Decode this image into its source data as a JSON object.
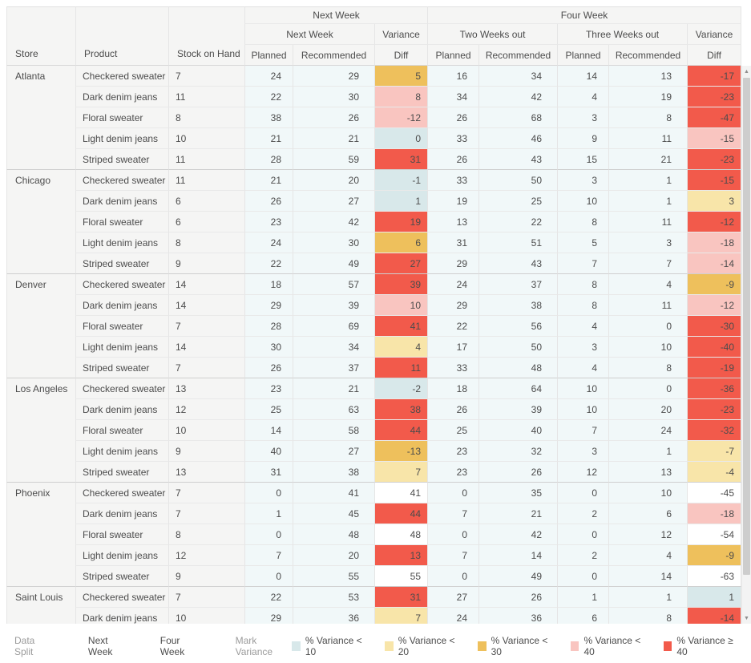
{
  "header": {
    "left_columns": [
      "Store",
      "Product",
      "Stock on Hand"
    ],
    "top_groups": [
      {
        "label": "Next Week",
        "span": 3
      },
      {
        "label": "Four Week",
        "span": 5
      }
    ],
    "mid_groups": [
      {
        "label": "Next Week",
        "span": 2
      },
      {
        "label": "Variance",
        "span": 1
      },
      {
        "label": "Two Weeks out",
        "span": 2
      },
      {
        "label": "Three Weeks out",
        "span": 2
      },
      {
        "label": "Variance",
        "span": 1
      }
    ],
    "value_columns": [
      "Planned",
      "Recommended",
      "Diff",
      "Planned",
      "Recommended",
      "Planned",
      "Recommended",
      "Diff"
    ]
  },
  "rows": [
    {
      "store": "Atlanta",
      "store_span": 5,
      "product": "Checkered sweater",
      "stock": "7",
      "nw_planned": "24",
      "nw_recommended": "29",
      "nw_diff": "5",
      "nw_band": "lt30",
      "w2_planned": "16",
      "w2_recommended": "34",
      "w3_planned": "14",
      "w3_recommended": "13",
      "fw_diff": "-17",
      "fw_band": "gte40"
    },
    {
      "product": "Dark denim jeans",
      "stock": "11",
      "nw_planned": "22",
      "nw_recommended": "30",
      "nw_diff": "8",
      "nw_band": "lt40",
      "w2_planned": "34",
      "w2_recommended": "42",
      "w3_planned": "4",
      "w3_recommended": "19",
      "fw_diff": "-23",
      "fw_band": "gte40"
    },
    {
      "product": "Floral sweater",
      "stock": "8",
      "nw_planned": "38",
      "nw_recommended": "26",
      "nw_diff": "-12",
      "nw_band": "lt40",
      "w2_planned": "26",
      "w2_recommended": "68",
      "w3_planned": "3",
      "w3_recommended": "8",
      "fw_diff": "-47",
      "fw_band": "gte40"
    },
    {
      "product": "Light denim jeans",
      "stock": "10",
      "nw_planned": "21",
      "nw_recommended": "21",
      "nw_diff": "0",
      "nw_band": "lt10",
      "w2_planned": "33",
      "w2_recommended": "46",
      "w3_planned": "9",
      "w3_recommended": "11",
      "fw_diff": "-15",
      "fw_band": "lt40"
    },
    {
      "product": "Striped sweater",
      "stock": "11",
      "nw_planned": "28",
      "nw_recommended": "59",
      "nw_diff": "31",
      "nw_band": "gte40",
      "w2_planned": "26",
      "w2_recommended": "43",
      "w3_planned": "15",
      "w3_recommended": "21",
      "fw_diff": "-23",
      "fw_band": "gte40"
    },
    {
      "store": "Chicago",
      "store_span": 5,
      "product": "Checkered sweater",
      "stock": "11",
      "nw_planned": "21",
      "nw_recommended": "20",
      "nw_diff": "-1",
      "nw_band": "lt10",
      "w2_planned": "33",
      "w2_recommended": "50",
      "w3_planned": "3",
      "w3_recommended": "1",
      "fw_diff": "-15",
      "fw_band": "gte40"
    },
    {
      "product": "Dark denim jeans",
      "stock": "6",
      "nw_planned": "26",
      "nw_recommended": "27",
      "nw_diff": "1",
      "nw_band": "lt10",
      "w2_planned": "19",
      "w2_recommended": "25",
      "w3_planned": "10",
      "w3_recommended": "1",
      "fw_diff": "3",
      "fw_band": "lt20"
    },
    {
      "product": "Floral sweater",
      "stock": "6",
      "nw_planned": "23",
      "nw_recommended": "42",
      "nw_diff": "19",
      "nw_band": "gte40",
      "w2_planned": "13",
      "w2_recommended": "22",
      "w3_planned": "8",
      "w3_recommended": "11",
      "fw_diff": "-12",
      "fw_band": "gte40"
    },
    {
      "product": "Light denim jeans",
      "stock": "8",
      "nw_planned": "24",
      "nw_recommended": "30",
      "nw_diff": "6",
      "nw_band": "lt30",
      "w2_planned": "31",
      "w2_recommended": "51",
      "w3_planned": "5",
      "w3_recommended": "3",
      "fw_diff": "-18",
      "fw_band": "lt40"
    },
    {
      "product": "Striped sweater",
      "stock": "9",
      "nw_planned": "22",
      "nw_recommended": "49",
      "nw_diff": "27",
      "nw_band": "gte40",
      "w2_planned": "29",
      "w2_recommended": "43",
      "w3_planned": "7",
      "w3_recommended": "7",
      "fw_diff": "-14",
      "fw_band": "lt40"
    },
    {
      "store": "Denver",
      "store_span": 5,
      "product": "Checkered sweater",
      "stock": "14",
      "nw_planned": "18",
      "nw_recommended": "57",
      "nw_diff": "39",
      "nw_band": "gte40",
      "w2_planned": "24",
      "w2_recommended": "37",
      "w3_planned": "8",
      "w3_recommended": "4",
      "fw_diff": "-9",
      "fw_band": "lt30"
    },
    {
      "product": "Dark denim jeans",
      "stock": "14",
      "nw_planned": "29",
      "nw_recommended": "39",
      "nw_diff": "10",
      "nw_band": "lt40",
      "w2_planned": "29",
      "w2_recommended": "38",
      "w3_planned": "8",
      "w3_recommended": "11",
      "fw_diff": "-12",
      "fw_band": "lt40"
    },
    {
      "product": "Floral sweater",
      "stock": "7",
      "nw_planned": "28",
      "nw_recommended": "69",
      "nw_diff": "41",
      "nw_band": "gte40",
      "w2_planned": "22",
      "w2_recommended": "56",
      "w3_planned": "4",
      "w3_recommended": "0",
      "fw_diff": "-30",
      "fw_band": "gte40"
    },
    {
      "product": "Light denim jeans",
      "stock": "14",
      "nw_planned": "30",
      "nw_recommended": "34",
      "nw_diff": "4",
      "nw_band": "lt20",
      "w2_planned": "17",
      "w2_recommended": "50",
      "w3_planned": "3",
      "w3_recommended": "10",
      "fw_diff": "-40",
      "fw_band": "gte40"
    },
    {
      "product": "Striped sweater",
      "stock": "7",
      "nw_planned": "26",
      "nw_recommended": "37",
      "nw_diff": "11",
      "nw_band": "gte40",
      "w2_planned": "33",
      "w2_recommended": "48",
      "w3_planned": "4",
      "w3_recommended": "8",
      "fw_diff": "-19",
      "fw_band": "gte40"
    },
    {
      "store": "Los Angeles",
      "store_span": 5,
      "product": "Checkered sweater",
      "stock": "13",
      "nw_planned": "23",
      "nw_recommended": "21",
      "nw_diff": "-2",
      "nw_band": "lt10",
      "w2_planned": "18",
      "w2_recommended": "64",
      "w3_planned": "10",
      "w3_recommended": "0",
      "fw_diff": "-36",
      "fw_band": "gte40"
    },
    {
      "product": "Dark denim jeans",
      "stock": "12",
      "nw_planned": "25",
      "nw_recommended": "63",
      "nw_diff": "38",
      "nw_band": "gte40",
      "w2_planned": "26",
      "w2_recommended": "39",
      "w3_planned": "10",
      "w3_recommended": "20",
      "fw_diff": "-23",
      "fw_band": "gte40"
    },
    {
      "product": "Floral sweater",
      "stock": "10",
      "nw_planned": "14",
      "nw_recommended": "58",
      "nw_diff": "44",
      "nw_band": "gte40",
      "w2_planned": "25",
      "w2_recommended": "40",
      "w3_planned": "7",
      "w3_recommended": "24",
      "fw_diff": "-32",
      "fw_band": "gte40"
    },
    {
      "product": "Light denim jeans",
      "stock": "9",
      "nw_planned": "40",
      "nw_recommended": "27",
      "nw_diff": "-13",
      "nw_band": "lt30",
      "w2_planned": "23",
      "w2_recommended": "32",
      "w3_planned": "3",
      "w3_recommended": "1",
      "fw_diff": "-7",
      "fw_band": "lt20"
    },
    {
      "product": "Striped sweater",
      "stock": "13",
      "nw_planned": "31",
      "nw_recommended": "38",
      "nw_diff": "7",
      "nw_band": "lt20",
      "w2_planned": "23",
      "w2_recommended": "26",
      "w3_planned": "12",
      "w3_recommended": "13",
      "fw_diff": "-4",
      "fw_band": "lt20"
    },
    {
      "store": "Phoenix",
      "store_span": 5,
      "product": "Checkered sweater",
      "stock": "7",
      "nw_planned": "0",
      "nw_recommended": "41",
      "nw_diff": "41",
      "nw_band": "none",
      "w2_planned": "0",
      "w2_recommended": "35",
      "w3_planned": "0",
      "w3_recommended": "10",
      "fw_diff": "-45",
      "fw_band": "none"
    },
    {
      "product": "Dark denim jeans",
      "stock": "7",
      "nw_planned": "1",
      "nw_recommended": "45",
      "nw_diff": "44",
      "nw_band": "gte40",
      "w2_planned": "7",
      "w2_recommended": "21",
      "w3_planned": "2",
      "w3_recommended": "6",
      "fw_diff": "-18",
      "fw_band": "lt40"
    },
    {
      "product": "Floral sweater",
      "stock": "8",
      "nw_planned": "0",
      "nw_recommended": "48",
      "nw_diff": "48",
      "nw_band": "none",
      "w2_planned": "0",
      "w2_recommended": "42",
      "w3_planned": "0",
      "w3_recommended": "12",
      "fw_diff": "-54",
      "fw_band": "none"
    },
    {
      "product": "Light denim jeans",
      "stock": "12",
      "nw_planned": "7",
      "nw_recommended": "20",
      "nw_diff": "13",
      "nw_band": "gte40",
      "w2_planned": "7",
      "w2_recommended": "14",
      "w3_planned": "2",
      "w3_recommended": "4",
      "fw_diff": "-9",
      "fw_band": "lt30"
    },
    {
      "product": "Striped sweater",
      "stock": "9",
      "nw_planned": "0",
      "nw_recommended": "55",
      "nw_diff": "55",
      "nw_band": "none",
      "w2_planned": "0",
      "w2_recommended": "49",
      "w3_planned": "0",
      "w3_recommended": "14",
      "fw_diff": "-63",
      "fw_band": "none"
    },
    {
      "store": "Saint Louis",
      "store_span": 2,
      "product": "Checkered sweater",
      "stock": "7",
      "nw_planned": "22",
      "nw_recommended": "53",
      "nw_diff": "31",
      "nw_band": "gte40",
      "w2_planned": "27",
      "w2_recommended": "26",
      "w3_planned": "1",
      "w3_recommended": "1",
      "fw_diff": "1",
      "fw_band": "lt10"
    },
    {
      "product": "Dark denim jeans",
      "stock": "10",
      "nw_planned": "29",
      "nw_recommended": "36",
      "nw_diff": "7",
      "nw_band": "lt20",
      "w2_planned": "24",
      "w2_recommended": "36",
      "w3_planned": "6",
      "w3_recommended": "8",
      "fw_diff": "-14",
      "fw_band": "gte40"
    }
  ],
  "legend": {
    "data_split_label": "Data Split",
    "options": [
      "Next Week",
      "Four Week"
    ],
    "mark_variance_label": "Mark Variance",
    "band_colors": {
      "lt10": "#d8e8ea",
      "lt20": "#f8e5a9",
      "lt30": "#eec05c",
      "lt40": "#f9c5c0",
      "gte40": "#f25a4b",
      "none": "transparent"
    },
    "bands": [
      {
        "key": "lt10",
        "label": "% Variance < 10"
      },
      {
        "key": "lt20",
        "label": "% Variance < 20"
      },
      {
        "key": "lt30",
        "label": "% Variance < 30"
      },
      {
        "key": "lt40",
        "label": "% Variance < 40"
      },
      {
        "key": "gte40",
        "label": "% Variance ≥ 40"
      }
    ]
  },
  "scrollbar": {
    "up_icon": "▲",
    "down_icon": "▼"
  }
}
